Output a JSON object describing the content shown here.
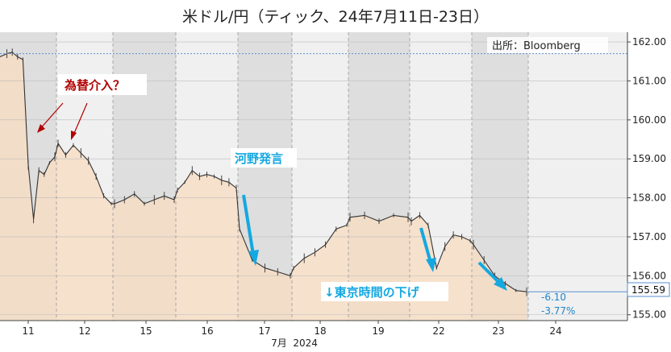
{
  "title": "米ドル/円（ティック、24年7月11日-23日）",
  "source": "出所：Bloomberg",
  "colors": {
    "line": "#333333",
    "area": "#f8dcc0",
    "area_dark": "#e6c8a8",
    "shade_light": "#f0f0f0",
    "shade_dark": "#dedede",
    "annotation_red": "#b00000",
    "annotation_blue": "#14a8e0",
    "reference_line": "#5a8fd0"
  },
  "chart_data": {
    "type": "area",
    "title": "米ドル/円（ティック、24年7月11日-23日）",
    "xlabel": "7月  2024",
    "ylabel": "",
    "x_ticks": [
      "11",
      "12",
      "15",
      "16",
      "17",
      "18",
      "19",
      "22",
      "23",
      "24"
    ],
    "y_ticks": [
      "155.00",
      "156.00",
      "157.00",
      "158.00",
      "159.00",
      "160.00",
      "161.00",
      "162.00"
    ],
    "ylim": [
      154.85,
      162.25
    ],
    "y_axis_position": "right",
    "grid": true,
    "reference_line": 161.7,
    "last_value": "155.59",
    "change_points": "-6.10",
    "change_percent": "-3.77%",
    "series": [
      {
        "points": [
          [
            "11",
            161.62
          ],
          [
            "11",
            161.7
          ],
          [
            "11",
            161.74
          ],
          [
            "11",
            161.62
          ],
          [
            "11",
            161.55
          ],
          [
            "11",
            158.85
          ],
          [
            "11",
            157.45
          ],
          [
            "11",
            158.7
          ],
          [
            "11",
            158.6
          ],
          [
            "11",
            158.9
          ],
          [
            "11",
            159.05
          ],
          [
            "12",
            159.4
          ],
          [
            "12",
            159.1
          ],
          [
            "12",
            159.35
          ],
          [
            "12",
            159.15
          ],
          [
            "12",
            158.95
          ],
          [
            "12",
            158.55
          ],
          [
            "12",
            158.05
          ],
          [
            "12",
            157.85
          ],
          [
            "15",
            157.85
          ],
          [
            "15",
            157.95
          ],
          [
            "15",
            158.1
          ],
          [
            "15",
            157.85
          ],
          [
            "15",
            157.95
          ],
          [
            "15",
            158.05
          ],
          [
            "15",
            157.95
          ],
          [
            "16",
            158.2
          ],
          [
            "16",
            158.4
          ],
          [
            "16",
            158.7
          ],
          [
            "16",
            158.55
          ],
          [
            "16",
            158.6
          ],
          [
            "16",
            158.55
          ],
          [
            "16",
            158.45
          ],
          [
            "16",
            158.4
          ],
          [
            "16",
            158.25
          ],
          [
            "17",
            157.2
          ],
          [
            "17",
            156.4
          ],
          [
            "17",
            156.2
          ],
          [
            "17",
            156.1
          ],
          [
            "17",
            156.0
          ],
          [
            "18",
            156.2
          ],
          [
            "18",
            156.45
          ],
          [
            "18",
            156.6
          ],
          [
            "18",
            156.8
          ],
          [
            "18",
            157.2
          ],
          [
            "18",
            157.3
          ],
          [
            "19",
            157.5
          ],
          [
            "19",
            157.55
          ],
          [
            "19",
            157.4
          ],
          [
            "19",
            157.55
          ],
          [
            "19",
            157.5
          ],
          [
            "22",
            157.4
          ],
          [
            "22",
            157.55
          ],
          [
            "22",
            157.3
          ],
          [
            "22",
            156.2
          ],
          [
            "22",
            156.75
          ],
          [
            "22",
            157.05
          ],
          [
            "22",
            157.0
          ],
          [
            "22",
            156.9
          ],
          [
            "23",
            156.8
          ],
          [
            "23",
            156.4
          ],
          [
            "23",
            156.0
          ],
          [
            "23",
            155.8
          ],
          [
            "23",
            155.62
          ],
          [
            "23",
            155.59
          ]
        ]
      }
    ],
    "annotations": [
      {
        "text": "為替介入？",
        "color": "red"
      },
      {
        "text": "河野発言",
        "color": "blue"
      },
      {
        "text": "↓東京時間の下げ",
        "color": "blue"
      }
    ]
  }
}
